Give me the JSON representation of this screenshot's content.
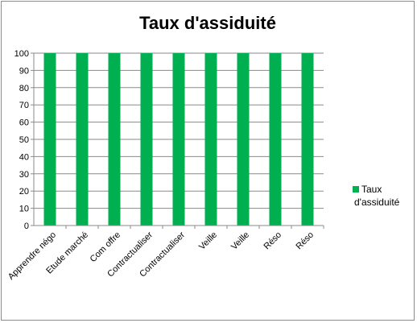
{
  "chart_data": {
    "type": "bar",
    "title": "Taux d'assiduité",
    "categories": [
      "Apprendre négo",
      "Etude marché",
      "Com offre",
      "Contractualiser",
      "Contractualiser",
      "Veille",
      "Veille",
      "Réso",
      "Réso"
    ],
    "series": [
      {
        "name": "Taux d'assiduité",
        "values": [
          100,
          100,
          100,
          100,
          100,
          100,
          100,
          100,
          100
        ],
        "color": "#00b050"
      }
    ],
    "ylim": [
      0,
      100
    ],
    "yticks": [
      "0",
      "10",
      "20",
      "30",
      "40",
      "50",
      "60",
      "70",
      "80",
      "90",
      "100"
    ],
    "grid": true,
    "legend": "right",
    "legend_lines": [
      "Taux",
      "d'assiduité"
    ]
  }
}
